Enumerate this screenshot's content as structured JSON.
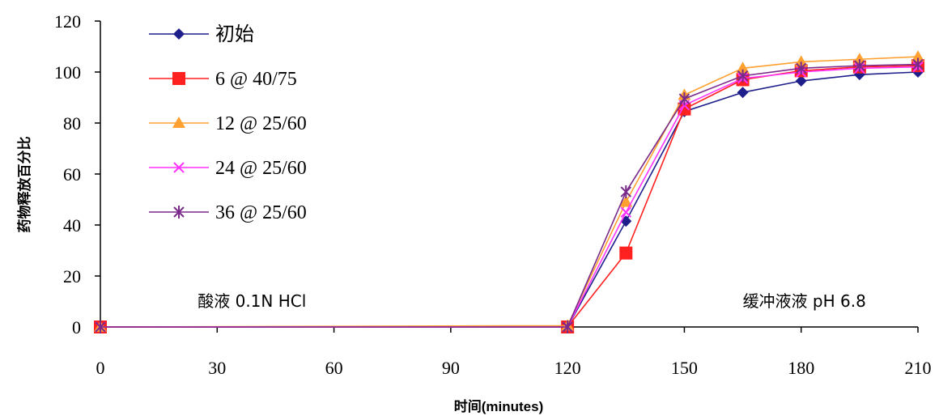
{
  "chart_data": {
    "type": "line",
    "title": "",
    "xlabel": "时间(minutes)",
    "ylabel": "药物释放百分比",
    "x": [
      0,
      120,
      135,
      150,
      165,
      180,
      195,
      210
    ],
    "xticks": [
      0,
      30,
      60,
      90,
      120,
      150,
      180,
      210
    ],
    "yticks": [
      0,
      20,
      40,
      60,
      80,
      100,
      120
    ],
    "xlim": [
      0,
      210
    ],
    "ylim": [
      0,
      120
    ],
    "grid": false,
    "legend_position": "top-left",
    "series": [
      {
        "name": "初始",
        "color": "#1f1f8c",
        "marker": "diamond",
        "values": [
          0,
          0,
          41.5,
          84.5,
          92,
          96.5,
          99,
          100
        ]
      },
      {
        "name": "6 @ 40/75",
        "color": "#ff2020",
        "marker": "square",
        "values": [
          0,
          0,
          29,
          85.5,
          97,
          100.5,
          102,
          102.5
        ]
      },
      {
        "name": "12 @ 25/60",
        "color": "#ffa030",
        "marker": "triangle",
        "values": [
          0,
          0.5,
          49,
          91,
          101.5,
          104,
          105,
          106
        ]
      },
      {
        "name": "24 @ 25/60",
        "color": "#ff33ff",
        "marker": "x",
        "values": [
          0,
          0,
          45,
          87,
          97.5,
          100,
          101.5,
          102
        ]
      },
      {
        "name": "36 @ 25/60",
        "color": "#7a2a8a",
        "marker": "star",
        "values": [
          0,
          0,
          53,
          89.5,
          98.5,
          101.5,
          102.5,
          103
        ]
      }
    ],
    "annotations": [
      {
        "text": "酸液 0.1N HCl",
        "x": 25,
        "y": 8
      },
      {
        "text": "缓冲液液 pH 6.8",
        "x": 165,
        "y": 8
      }
    ]
  }
}
